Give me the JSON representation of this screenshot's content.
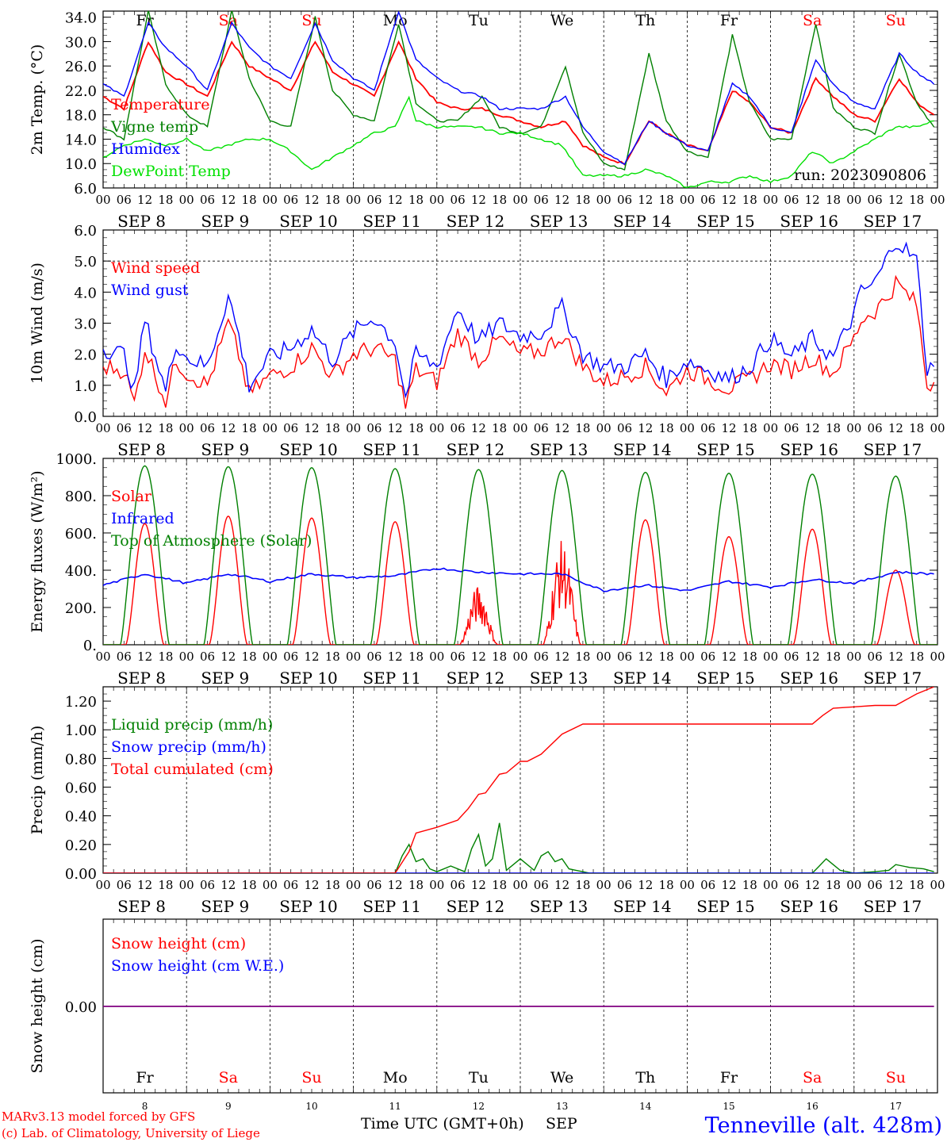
{
  "run": "run: 2023090806",
  "days": [
    {
      "dow": "Fr",
      "weekend": false,
      "date": "SEP  8",
      "num": "8"
    },
    {
      "dow": "Sa",
      "weekend": true,
      "date": "SEP  9",
      "num": "9"
    },
    {
      "dow": "Su",
      "weekend": true,
      "date": "SEP 10",
      "num": "10"
    },
    {
      "dow": "Mo",
      "weekend": false,
      "date": "SEP 11",
      "num": "11"
    },
    {
      "dow": "Tu",
      "weekend": false,
      "date": "SEP 12",
      "num": "12"
    },
    {
      "dow": "We",
      "weekend": false,
      "date": "SEP 13",
      "num": "13"
    },
    {
      "dow": "Th",
      "weekend": false,
      "date": "SEP 14",
      "num": "14"
    },
    {
      "dow": "Fr",
      "weekend": false,
      "date": "SEP 15",
      "num": "15"
    },
    {
      "dow": "Sa",
      "weekend": true,
      "date": "SEP 16",
      "num": "16"
    },
    {
      "dow": "Su",
      "weekend": true,
      "date": "SEP 17",
      "num": "17"
    }
  ],
  "hour_ticks": [
    "00",
    "06",
    "12",
    "18"
  ],
  "footer": {
    "model": "MARv3.13 model forced by GFS",
    "credit": "(c) Lab. of Climatology, University of Liege",
    "xlabel": "Time UTC (GMT+0h)",
    "month": "SEP",
    "station": "Tenneville (alt. 428m)"
  },
  "colors": {
    "red": "#ff0000",
    "green": "#008000",
    "blue": "#0000ff",
    "lightgreen": "#00e000",
    "purple": "#800080",
    "weekend": "#ff0000"
  },
  "chart_data": [
    {
      "id": "temperature",
      "type": "line",
      "ylabel": "2m Temp. (°C)",
      "ylim": [
        6,
        35
      ],
      "yticks": [
        "6.0",
        "10.0",
        "14.0",
        "18.0",
        "22.0",
        "26.0",
        "30.0",
        "34.0"
      ],
      "x_unit": "hours since SEP 8 00 UTC",
      "series": [
        {
          "name": "Temperature",
          "color": "red",
          "x": [
            0,
            6,
            13,
            18,
            24,
            30,
            37,
            42,
            48,
            54,
            61,
            66,
            72,
            78,
            85,
            90,
            96,
            102,
            109,
            114,
            120,
            126,
            133,
            138,
            144,
            150,
            157,
            162,
            168,
            174,
            181,
            186,
            192,
            198,
            205,
            210,
            216,
            222,
            229,
            234,
            239
          ],
          "y": [
            21,
            19,
            30,
            25,
            23,
            21,
            30,
            26,
            24,
            22,
            30,
            25,
            23,
            21,
            30,
            24,
            20,
            19,
            19,
            18,
            17,
            16,
            17,
            13,
            11,
            10,
            17,
            15,
            13,
            12,
            22,
            20,
            16,
            15,
            24,
            21,
            18,
            17,
            24,
            20,
            18
          ]
        },
        {
          "name": "Vigne temp",
          "color": "green",
          "x": [
            0,
            6,
            13,
            18,
            24,
            30,
            37,
            42,
            48,
            54,
            61,
            66,
            72,
            78,
            85,
            90,
            96,
            102,
            109,
            114,
            120,
            126,
            133,
            138,
            144,
            150,
            157,
            162,
            168,
            174,
            181,
            186,
            192,
            198,
            205,
            210,
            216,
            222,
            229,
            234,
            239
          ],
          "y": [
            16,
            14,
            35,
            23,
            18,
            16,
            35,
            24,
            17,
            16,
            34,
            22,
            18,
            17,
            33,
            20,
            17,
            17,
            21,
            16,
            15,
            16,
            26,
            15,
            10,
            9,
            28,
            17,
            12,
            11,
            31,
            20,
            14,
            14,
            33,
            19,
            16,
            15,
            28,
            20,
            16
          ]
        },
        {
          "name": "Humidex",
          "color": "blue",
          "x": [
            0,
            6,
            13,
            18,
            24,
            30,
            37,
            42,
            48,
            54,
            61,
            66,
            72,
            78,
            85,
            90,
            96,
            102,
            109,
            114,
            120,
            126,
            133,
            138,
            144,
            150,
            157,
            162,
            168,
            174,
            181,
            186,
            192,
            198,
            205,
            210,
            216,
            222,
            229,
            234,
            239
          ],
          "y": [
            23,
            21,
            33,
            29,
            26,
            22,
            33,
            29,
            26,
            24,
            33,
            27,
            24,
            22,
            35,
            27,
            24,
            22,
            21,
            19,
            19,
            19,
            21,
            16,
            12,
            10,
            17,
            15,
            13,
            12,
            23,
            21,
            16,
            15,
            27,
            23,
            20,
            19,
            28,
            25,
            23
          ]
        },
        {
          "name": "DewPoint Temp",
          "color": "lightgreen",
          "x": [
            0,
            6,
            12,
            18,
            24,
            30,
            36,
            42,
            48,
            54,
            60,
            66,
            72,
            78,
            84,
            88,
            90,
            96,
            102,
            108,
            114,
            120,
            126,
            132,
            138,
            144,
            150,
            156,
            162,
            168,
            174,
            180,
            186,
            192,
            198,
            204,
            210,
            216,
            222,
            228,
            234,
            239
          ],
          "y": [
            11,
            13,
            14,
            13,
            14,
            12,
            13,
            14,
            14,
            12,
            9,
            11,
            13,
            15,
            16,
            21,
            17,
            16,
            16,
            16,
            15,
            15,
            14,
            13,
            8,
            8,
            8,
            9,
            8,
            6,
            7,
            7,
            8,
            7,
            8,
            12,
            10,
            12,
            14,
            16,
            16,
            17
          ]
        }
      ]
    },
    {
      "id": "wind",
      "type": "line",
      "ylabel": "10m Wind (m/s)",
      "ylim": [
        0,
        6
      ],
      "yticks": [
        "0.0",
        "1.0",
        "2.0",
        "3.0",
        "4.0",
        "5.0",
        "6.0"
      ],
      "reference_line": 5.0,
      "series": [
        {
          "name": "Wind speed",
          "color": "red",
          "x": [
            0,
            6,
            9,
            12,
            18,
            21,
            24,
            30,
            36,
            39,
            42,
            48,
            54,
            60,
            66,
            72,
            78,
            84,
            87,
            90,
            96,
            102,
            108,
            114,
            120,
            126,
            132,
            138,
            144,
            150,
            156,
            162,
            168,
            174,
            180,
            186,
            192,
            198,
            204,
            210,
            216,
            218,
            222,
            226,
            228,
            234,
            237,
            239
          ],
          "y": [
            1.6,
            1.5,
            0.4,
            2.2,
            0.5,
            1.8,
            1.4,
            1.0,
            3.0,
            2.0,
            0.7,
            1.3,
            1.6,
            2.2,
            1.3,
            2.0,
            2.2,
            1.8,
            0.3,
            1.5,
            1.1,
            2.7,
            1.8,
            2.5,
            2.0,
            2.1,
            2.6,
            1.6,
            1.1,
            1.3,
            1.6,
            0.8,
            1.5,
            1.2,
            0.9,
            1.2,
            1.7,
            1.5,
            1.9,
            1.4,
            2.5,
            3.1,
            3.4,
            3.9,
            4.3,
            3.6,
            1.0,
            1.1
          ]
        },
        {
          "name": "Wind gust",
          "color": "blue",
          "x": [
            0,
            6,
            9,
            12,
            18,
            21,
            24,
            30,
            36,
            39,
            42,
            48,
            54,
            60,
            66,
            72,
            78,
            84,
            87,
            90,
            96,
            102,
            108,
            114,
            120,
            126,
            132,
            138,
            144,
            150,
            156,
            162,
            168,
            174,
            180,
            186,
            192,
            198,
            204,
            210,
            216,
            218,
            222,
            226,
            228,
            234,
            237,
            239
          ],
          "y": [
            2.2,
            2.0,
            0.8,
            3.1,
            0.8,
            2.4,
            1.9,
            1.6,
            3.9,
            2.6,
            1.0,
            1.9,
            2.2,
            2.8,
            1.8,
            2.7,
            3.2,
            2.4,
            0.6,
            2.0,
            1.6,
            3.5,
            2.4,
            3.0,
            2.6,
            2.7,
            3.5,
            2.0,
            1.6,
            1.6,
            2.0,
            1.2,
            1.8,
            1.5,
            1.2,
            1.6,
            2.5,
            1.9,
            2.5,
            1.9,
            3.3,
            4.0,
            4.3,
            5.2,
            5.7,
            5.0,
            1.5,
            1.6
          ]
        }
      ]
    },
    {
      "id": "energy",
      "type": "line",
      "ylabel": "Energy fluxes (W/m²)",
      "ylim": [
        0,
        1000
      ],
      "yticks": [
        "0.",
        "200.",
        "400.",
        "600.",
        "800.",
        "1000."
      ],
      "series": [
        {
          "name": "Solar",
          "color": "red",
          "peaks": [
            650,
            690,
            680,
            660,
            320,
            560,
            670,
            580,
            620,
            400
          ]
        },
        {
          "name": "Infrared",
          "color": "blue",
          "x": [
            0,
            12,
            24,
            36,
            48,
            60,
            72,
            84,
            96,
            108,
            120,
            132,
            144,
            156,
            168,
            180,
            192,
            204,
            216,
            228,
            239
          ],
          "y": [
            320,
            380,
            330,
            380,
            340,
            380,
            360,
            370,
            410,
            390,
            380,
            380,
            290,
            320,
            290,
            340,
            310,
            350,
            330,
            390,
            380
          ]
        },
        {
          "name": "Top of Atmosphere (Solar)",
          "color": "green",
          "peaks": [
            960,
            955,
            950,
            945,
            940,
            935,
            925,
            920,
            915,
            905
          ]
        }
      ]
    },
    {
      "id": "precip",
      "type": "line",
      "ylabel": "Precip (mm/h)",
      "ylim": [
        0,
        1.3
      ],
      "yticks": [
        "0.00",
        "0.20",
        "0.40",
        "0.60",
        "0.80",
        "1.00",
        "1.20"
      ],
      "series": [
        {
          "name": "Liquid precip (mm/h)",
          "color": "green",
          "x": [
            0,
            84,
            86,
            88,
            90,
            92,
            94,
            96,
            100,
            104,
            106,
            108,
            110,
            112,
            114,
            116,
            120,
            124,
            126,
            128,
            130,
            132,
            134,
            136,
            138,
            140,
            144,
            204,
            206,
            208,
            210,
            212,
            214,
            216,
            222,
            226,
            228,
            230,
            232,
            236,
            239
          ],
          "y": [
            0,
            0,
            0.12,
            0.2,
            0.08,
            0.1,
            0.03,
            0.01,
            0.05,
            0.01,
            0.17,
            0.27,
            0.05,
            0.1,
            0.35,
            0.02,
            0.1,
            0.02,
            0.12,
            0.15,
            0.08,
            0.1,
            0.03,
            0.02,
            0.01,
            0,
            0,
            0,
            0.05,
            0.1,
            0.06,
            0.02,
            0.01,
            0,
            0.01,
            0.02,
            0.06,
            0.05,
            0.04,
            0.03,
            0.01
          ]
        },
        {
          "name": "Snow precip (mm/h)",
          "color": "blue",
          "x": [
            0,
            239
          ],
          "y": [
            0,
            0
          ]
        },
        {
          "name": "Total cumulated (cm)",
          "color": "red",
          "x": [
            0,
            84,
            88,
            90,
            96,
            102,
            105,
            108,
            110,
            114,
            116,
            120,
            122,
            126,
            132,
            138,
            144,
            204,
            207,
            210,
            216,
            222,
            228,
            234,
            239
          ],
          "y": [
            0,
            0,
            0.15,
            0.28,
            0.32,
            0.37,
            0.45,
            0.55,
            0.56,
            0.69,
            0.7,
            0.78,
            0.78,
            0.83,
            0.97,
            1.04,
            1.04,
            1.04,
            1.1,
            1.15,
            1.16,
            1.17,
            1.17,
            1.25,
            1.3
          ]
        }
      ]
    },
    {
      "id": "snow",
      "type": "line",
      "ylabel": "Snow height (cm)",
      "yticks": [
        "0.00"
      ],
      "series": [
        {
          "name": "Snow height (cm)",
          "color": "red",
          "x": [
            0,
            239
          ],
          "y": [
            0,
            0
          ]
        },
        {
          "name": "Snow height (cm W.E.)",
          "color": "blue",
          "x": [
            0,
            239
          ],
          "y": [
            0,
            0
          ]
        }
      ]
    }
  ]
}
